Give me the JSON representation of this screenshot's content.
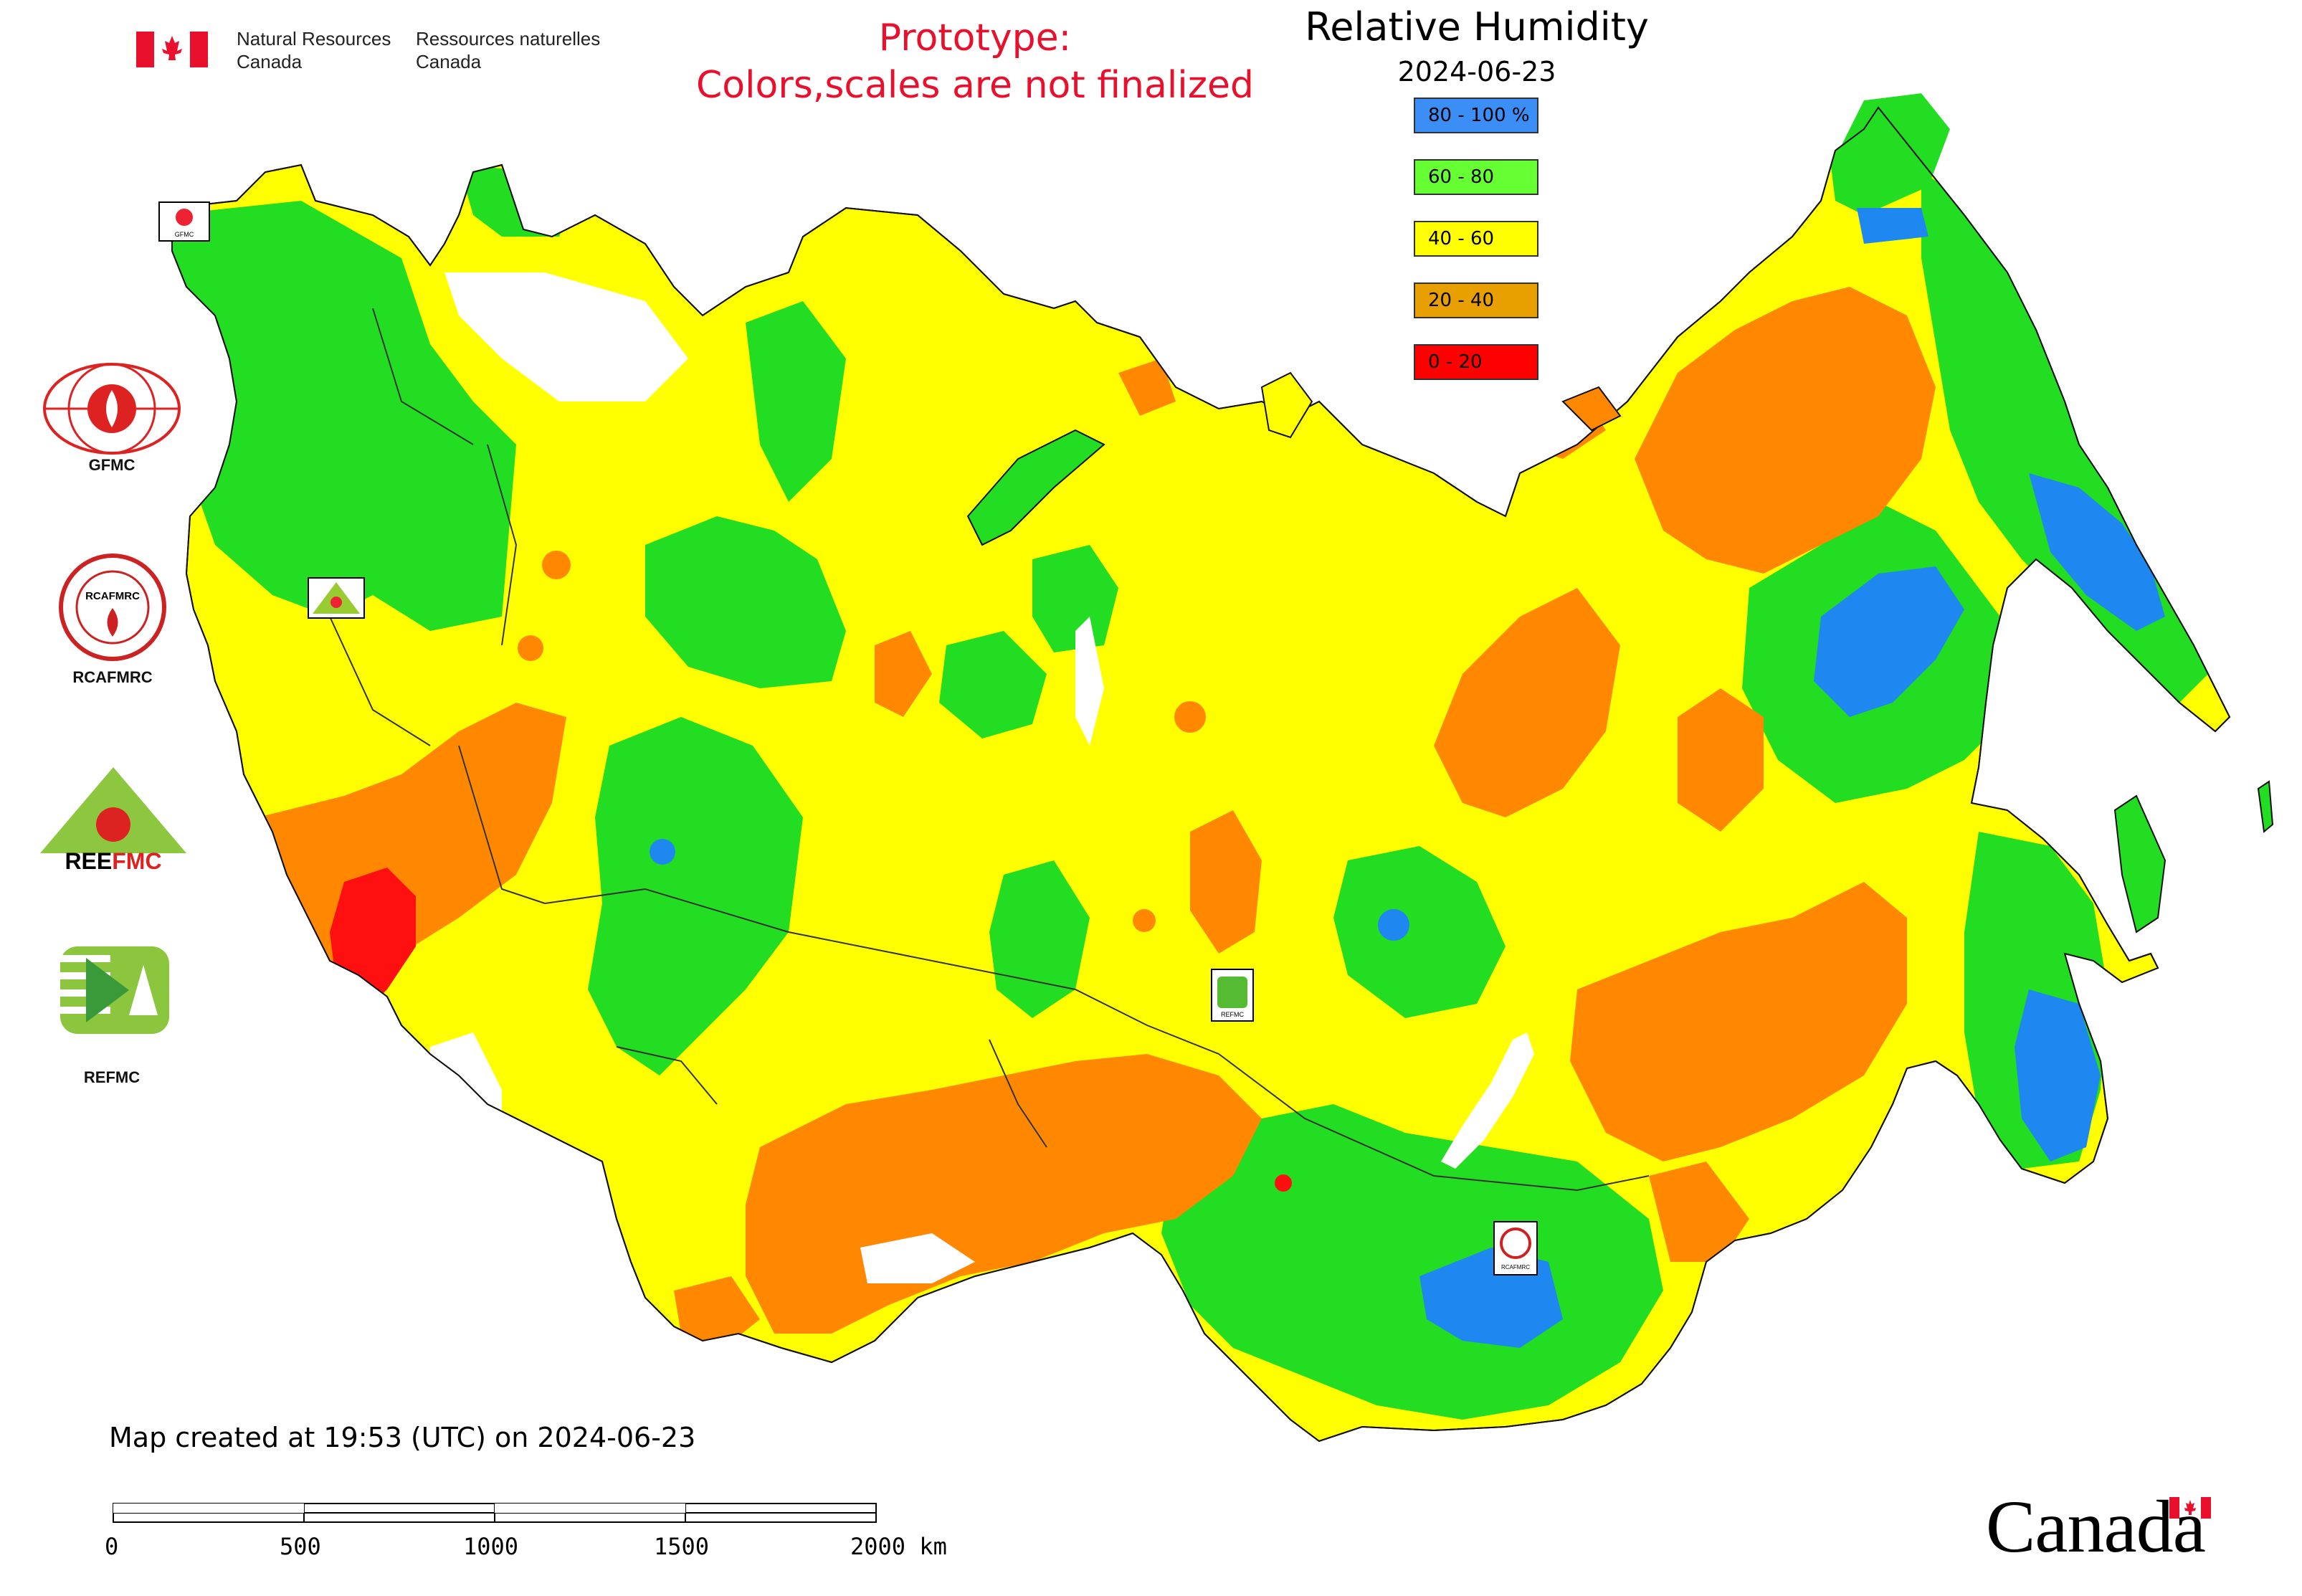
{
  "header": {
    "nrcan_en_line1": "Natural Resources",
    "nrcan_en_line2": "Canada",
    "nrcan_fr_line1": "Ressources naturelles",
    "nrcan_fr_line2": "Canada",
    "prototype_line1": "Prototype:",
    "prototype_line2": "Colors,scales are not finalized"
  },
  "map": {
    "title": "Relative Humidity",
    "date": "2024-06-23",
    "legend": [
      {
        "label": "80 - 100 %",
        "color": "#3a8ef6"
      },
      {
        "label": "60 - 80",
        "color": "#66ff33"
      },
      {
        "label": "40 - 60",
        "color": "#ffff00"
      },
      {
        "label": "20 - 40",
        "color": "#e8a000"
      },
      {
        "label": "0 - 20",
        "color": "#ff0000"
      }
    ],
    "colors": {
      "very_wet": "#1e88f0",
      "wet": "#22dd22",
      "moderate": "#ffff00",
      "dry": "#ff8800",
      "very_dry": "#ff1010",
      "water": "#ffffff"
    }
  },
  "logos": [
    {
      "label": "GFMC",
      "icon": "gfmc-logo-icon"
    },
    {
      "label": "RCAFMRC",
      "icon": "rcafmrc-logo-icon"
    },
    {
      "label": "REEFMC",
      "icon": "reefmc-logo-icon"
    },
    {
      "label": "REFMC",
      "icon": "refmc-logo-icon"
    }
  ],
  "footer": {
    "created": "Map created at 19:53 (UTC) on 2024-06-23",
    "scale_ticks": [
      "0",
      "500",
      "1000",
      "1500",
      "2000 km"
    ],
    "canada_wordmark": "Canada"
  }
}
